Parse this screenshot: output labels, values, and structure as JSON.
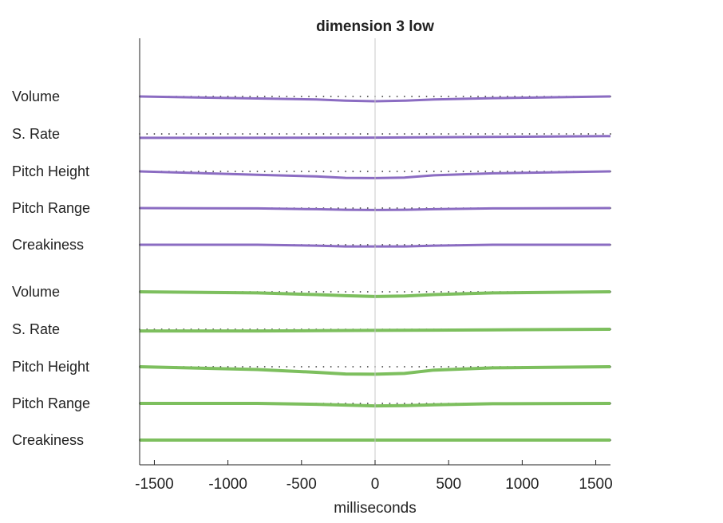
{
  "chart_data": {
    "type": "line",
    "title": "dimension  3 low",
    "xlabel": "milliseconds",
    "xlim": [
      -1600,
      1600
    ],
    "xticks": [
      -1500,
      -1000,
      -500,
      0,
      500,
      1000,
      1500
    ],
    "grid": false,
    "colors": {
      "purple": "#8B6CC2",
      "green": "#7DBF5E",
      "zero_line": "#c8c8c8",
      "axis": "#222222"
    },
    "series": [
      {
        "name": "Volume",
        "group": "purple",
        "x": [
          -1600,
          -800,
          -400,
          -200,
          0,
          200,
          400,
          800,
          1600
        ],
        "values": [
          0,
          -0.35,
          -0.55,
          -0.75,
          -0.85,
          -0.75,
          -0.55,
          -0.3,
          0
        ]
      },
      {
        "name": "S. Rate",
        "group": "purple",
        "x": [
          -1600,
          0,
          1600
        ],
        "values": [
          -0.7,
          -0.65,
          -0.4
        ]
      },
      {
        "name": "Pitch Height",
        "group": "purple",
        "x": [
          -1600,
          -800,
          -400,
          -200,
          0,
          200,
          400,
          800,
          1600
        ],
        "values": [
          0,
          -0.6,
          -0.9,
          -1.15,
          -1.2,
          -1.1,
          -0.7,
          -0.35,
          0
        ]
      },
      {
        "name": "Pitch Range",
        "group": "purple",
        "x": [
          -1600,
          -800,
          -400,
          -200,
          0,
          200,
          400,
          800,
          1600
        ],
        "values": [
          0,
          -0.05,
          -0.2,
          -0.3,
          -0.35,
          -0.3,
          -0.2,
          -0.05,
          0
        ]
      },
      {
        "name": "Creakiness",
        "group": "purple",
        "x": [
          -1600,
          -800,
          -400,
          -200,
          0,
          200,
          400,
          800,
          1600
        ],
        "values": [
          0,
          0,
          -0.15,
          -0.3,
          -0.3,
          -0.3,
          -0.15,
          0,
          0
        ]
      },
      {
        "name": "Volume",
        "group": "green",
        "x": [
          -1600,
          -800,
          -400,
          -200,
          0,
          200,
          400,
          800,
          1600
        ],
        "values": [
          0,
          -0.2,
          -0.5,
          -0.7,
          -0.85,
          -0.75,
          -0.5,
          -0.2,
          0
        ]
      },
      {
        "name": "S. Rate",
        "group": "green",
        "x": [
          -1600,
          -800,
          -400,
          0,
          400,
          800,
          1600
        ],
        "values": [
          -0.3,
          -0.3,
          -0.25,
          -0.2,
          -0.15,
          -0.1,
          0
        ]
      },
      {
        "name": "Pitch Height",
        "group": "green",
        "x": [
          -1600,
          -800,
          -400,
          -200,
          0,
          200,
          400,
          800,
          1600
        ],
        "values": [
          0,
          -0.5,
          -1.0,
          -1.3,
          -1.35,
          -1.2,
          -0.6,
          -0.2,
          0
        ]
      },
      {
        "name": "Pitch Range",
        "group": "green",
        "x": [
          -1600,
          -800,
          -400,
          -200,
          0,
          200,
          400,
          800,
          1600
        ],
        "values": [
          0,
          0,
          -0.15,
          -0.3,
          -0.45,
          -0.4,
          -0.25,
          -0.05,
          0
        ]
      },
      {
        "name": "Creakiness",
        "group": "green",
        "x": [
          -1600,
          1600
        ],
        "values": [
          0,
          0
        ]
      }
    ]
  }
}
